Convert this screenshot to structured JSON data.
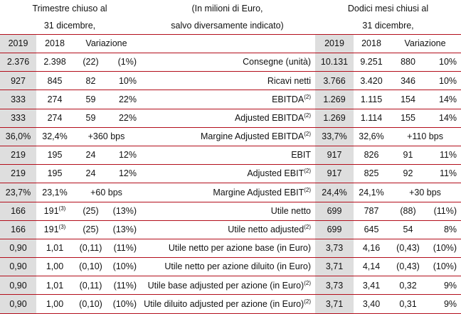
{
  "header": {
    "left_line1": "Trimestre chiuso al",
    "left_line2": "31 dicembre,",
    "mid_line1": "(In milioni di Euro,",
    "mid_line2": "salvo diversamente indicato)",
    "right_line1": "Dodici mesi chiusi al",
    "right_line2": "31 dicembre,"
  },
  "columns": {
    "y2019": "2019",
    "y2018": "2018",
    "variazione": "Variazione",
    "y2019_b": "2019",
    "y2018_b": "2018",
    "variazione_b": "Variazione"
  },
  "rows": [
    {
      "label": "Consegne (unità)",
      "label_sup": "",
      "q19": "2.376",
      "q18": "2.398",
      "q18_sup": "",
      "qv_abs": "(22)",
      "qv_pct": "(1%)",
      "qv_full": "",
      "y19": "10.131",
      "y18": "9.251",
      "yv_abs": "880",
      "yv_pct": "10%",
      "yv_full": ""
    },
    {
      "label": "Ricavi netti",
      "label_sup": "",
      "q19": "927",
      "q18": "845",
      "q18_sup": "",
      "qv_abs": "82",
      "qv_pct": "10%",
      "qv_full": "",
      "y19": "3.766",
      "y18": "3.420",
      "yv_abs": "346",
      "yv_pct": "10%",
      "yv_full": ""
    },
    {
      "label": "EBITDA",
      "label_sup": "(2)",
      "q19": "333",
      "q18": "274",
      "q18_sup": "",
      "qv_abs": "59",
      "qv_pct": "22%",
      "qv_full": "",
      "y19": "1.269",
      "y18": "1.115",
      "yv_abs": "154",
      "yv_pct": "14%",
      "yv_full": ""
    },
    {
      "label": "Adjusted EBITDA",
      "label_sup": "(2)",
      "q19": "333",
      "q18": "274",
      "q18_sup": "",
      "qv_abs": "59",
      "qv_pct": "22%",
      "qv_full": "",
      "y19": "1.269",
      "y18": "1.114",
      "yv_abs": "155",
      "yv_pct": "14%",
      "yv_full": ""
    },
    {
      "label": "Margine Adjusted EBITDA",
      "label_sup": "(2)",
      "q19": "36,0%",
      "q18": "32,4%",
      "q18_sup": "",
      "qv_abs": "",
      "qv_pct": "",
      "qv_full": "+360 bps",
      "y19": "33,7%",
      "y18": "32,6%",
      "yv_abs": "",
      "yv_pct": "",
      "yv_full": "+110 bps"
    },
    {
      "label": "EBIT",
      "label_sup": "",
      "q19": "219",
      "q18": "195",
      "q18_sup": "",
      "qv_abs": "24",
      "qv_pct": "12%",
      "qv_full": "",
      "y19": "917",
      "y18": "826",
      "yv_abs": "91",
      "yv_pct": "11%",
      "yv_full": ""
    },
    {
      "label": "Adjusted EBIT",
      "label_sup": "(2)",
      "q19": "219",
      "q18": "195",
      "q18_sup": "",
      "qv_abs": "24",
      "qv_pct": "12%",
      "qv_full": "",
      "y19": "917",
      "y18": "825",
      "yv_abs": "92",
      "yv_pct": "11%",
      "yv_full": ""
    },
    {
      "label": "Margine Adjusted EBIT",
      "label_sup": "(2)",
      "q19": "23,7%",
      "q18": "23,1%",
      "q18_sup": "",
      "qv_abs": "",
      "qv_pct": "",
      "qv_full": "+60 bps",
      "y19": "24,4%",
      "y18": "24,1%",
      "yv_abs": "",
      "yv_pct": "",
      "yv_full": "+30 bps"
    },
    {
      "label": "Utile netto",
      "label_sup": "",
      "q19": "166",
      "q18": "191",
      "q18_sup": "(3)",
      "qv_abs": "(25)",
      "qv_pct": "(13%)",
      "qv_full": "",
      "y19": "699",
      "y18": "787",
      "yv_abs": "(88)",
      "yv_pct": "(11%)",
      "yv_full": ""
    },
    {
      "label": "Utile netto adjusted",
      "label_sup": "(2)",
      "q19": "166",
      "q18": "191",
      "q18_sup": "(3)",
      "qv_abs": "(25)",
      "qv_pct": "(13%)",
      "qv_full": "",
      "y19": "699",
      "y18": "645",
      "yv_abs": "54",
      "yv_pct": "8%",
      "yv_full": ""
    },
    {
      "label": "Utile netto per azione base (in Euro)",
      "label_sup": "",
      "q19": "0,90",
      "q18": "1,01",
      "q18_sup": "",
      "qv_abs": "(0,11)",
      "qv_pct": "(11%)",
      "qv_full": "",
      "y19": "3,73",
      "y18": "4,16",
      "yv_abs": "(0,43)",
      "yv_pct": "(10%)",
      "yv_full": ""
    },
    {
      "label": "Utile netto per azione diluito (in Euro)",
      "label_sup": "",
      "q19": "0,90",
      "q18": "1,00",
      "q18_sup": "",
      "qv_abs": "(0,10)",
      "qv_pct": "(10%)",
      "qv_full": "",
      "y19": "3,71",
      "y18": "4,14",
      "yv_abs": "(0,43)",
      "yv_pct": "(10%)",
      "yv_full": ""
    },
    {
      "label": "Utile base adjusted per azione (in Euro)",
      "label_sup": "(2)",
      "q19": "0,90",
      "q18": "1,01",
      "q18_sup": "",
      "qv_abs": "(0,11)",
      "qv_pct": "(11%)",
      "qv_full": "",
      "y19": "3,73",
      "y18": "3,41",
      "yv_abs": "0,32",
      "yv_pct": "9%",
      "yv_full": ""
    },
    {
      "label": "Utile diluito adjusted per azione (in Euro)",
      "label_sup": "(2)",
      "q19": "0,90",
      "q18": "1,00",
      "q18_sup": "",
      "qv_abs": "(0,10)",
      "qv_pct": "(10%)",
      "qv_full": "",
      "y19": "3,71",
      "y18": "3,40",
      "yv_abs": "0,31",
      "yv_pct": "9%",
      "yv_full": ""
    }
  ],
  "colors": {
    "shade": "#dedede",
    "rule": "#b30e1b"
  }
}
